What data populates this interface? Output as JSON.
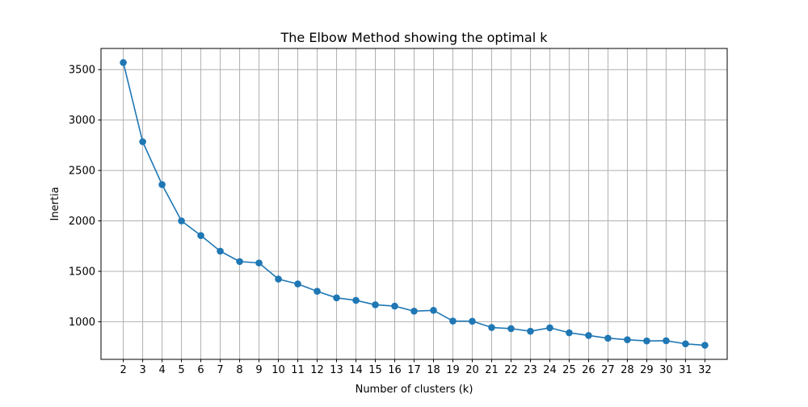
{
  "chart_data": {
    "type": "line",
    "title": "The Elbow Method showing the optimal k",
    "xlabel": "Number of clusters (k)",
    "ylabel": "Inertia",
    "x": [
      2,
      3,
      4,
      5,
      6,
      7,
      8,
      9,
      10,
      11,
      12,
      13,
      14,
      15,
      16,
      17,
      18,
      19,
      20,
      21,
      22,
      23,
      24,
      25,
      26,
      27,
      28,
      29,
      30,
      31,
      32
    ],
    "series": [
      {
        "values": [
          3570,
          2785,
          2360,
          2000,
          1855,
          1700,
          1597,
          1583,
          1423,
          1375,
          1302,
          1237,
          1212,
          1168,
          1155,
          1105,
          1113,
          1007,
          1005,
          943,
          932,
          906,
          940,
          891,
          864,
          837,
          822,
          810,
          812,
          781,
          767
        ],
        "color": "#1f77b4",
        "marker": "circle"
      }
    ],
    "xticks": [
      "2",
      "3",
      "4",
      "5",
      "6",
      "7",
      "8",
      "9",
      "10",
      "11",
      "12",
      "13",
      "14",
      "15",
      "16",
      "17",
      "18",
      "19",
      "20",
      "21",
      "22",
      "23",
      "24",
      "25",
      "26",
      "27",
      "28",
      "29",
      "30",
      "31",
      "32"
    ],
    "yticks": [
      1000,
      1500,
      2000,
      2500,
      3000,
      3500
    ],
    "xlim": [
      0.85,
      33.15
    ],
    "ylim": [
      627,
      3710
    ],
    "grid": true
  }
}
